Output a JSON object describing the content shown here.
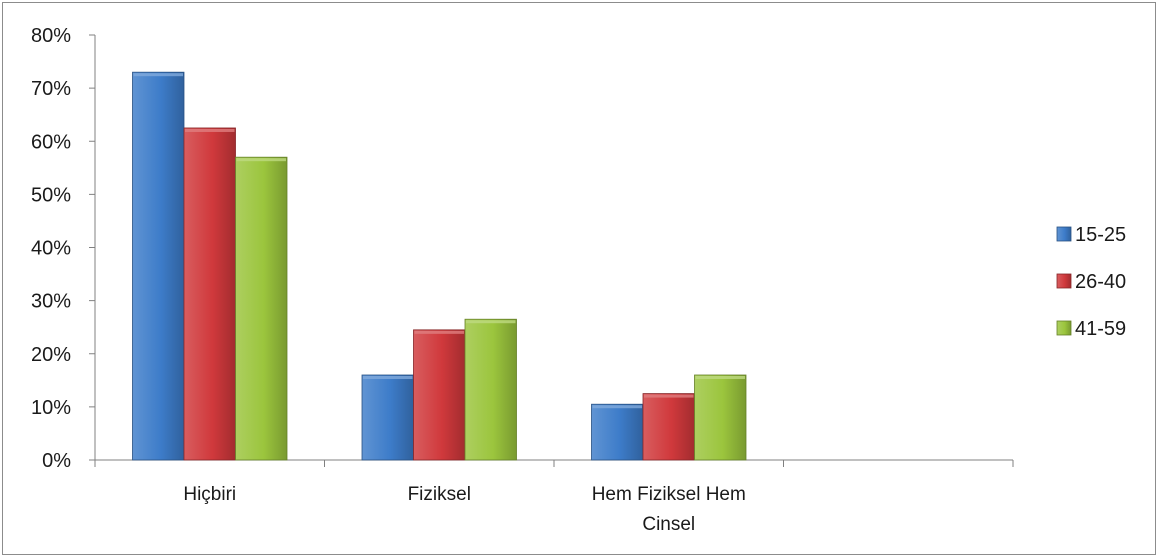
{
  "chart_data": {
    "type": "bar",
    "title": "",
    "xlabel": "",
    "ylabel": "",
    "ylim": [
      0,
      80
    ],
    "yticks": [
      "0%",
      "10%",
      "20%",
      "30%",
      "40%",
      "50%",
      "60%",
      "70%",
      "80%"
    ],
    "y_unit": "%",
    "categories": [
      "Hiçbiri",
      "Fiziksel",
      "Hem Fiziksel Hem Cinsel",
      ""
    ],
    "category_lines": [
      [
        "Hiçbiri"
      ],
      [
        "Fiziksel"
      ],
      [
        "Hem Fiziksel Hem",
        "Cinsel"
      ],
      []
    ],
    "series": [
      {
        "name": "15-25",
        "values": [
          73,
          16,
          10.5,
          null
        ],
        "color": "#3d7cc9"
      },
      {
        "name": "26-40",
        "values": [
          62.5,
          24.5,
          12.5,
          null
        ],
        "color": "#d0393c"
      },
      {
        "name": "41-59",
        "values": [
          57,
          26.5,
          16,
          null
        ],
        "color": "#9bc53d"
      }
    ],
    "grid": false,
    "legend_position": "right"
  }
}
